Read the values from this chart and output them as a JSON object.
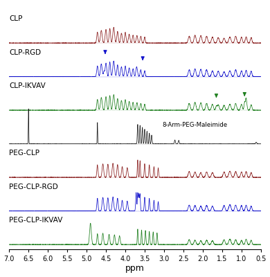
{
  "traces": [
    {
      "label": "CLP",
      "color": "#8B2020",
      "type": "clp"
    },
    {
      "label": "CLP-RGD",
      "color": "#1414CC",
      "type": "clp_rgd"
    },
    {
      "label": "CLP-IKVAV",
      "color": "#208020",
      "type": "clp_ikvav"
    },
    {
      "label": "8-Arm-PEG-Maleimide",
      "color": "#1a1a1a",
      "type": "peg"
    },
    {
      "label": "PEG-CLP",
      "color": "#8B2020",
      "type": "peg_clp"
    },
    {
      "label": "PEG-CLP-RGD",
      "color": "#1414CC",
      "type": "peg_clp_rgd"
    },
    {
      "label": "PEG-CLP-IKVAV",
      "color": "#208020",
      "type": "peg_clp_ikvav"
    }
  ],
  "xmin": 0.5,
  "xmax": 7.0,
  "xlabel": "ppm",
  "arrow_color_blue": "#1414CC",
  "arrow_color_green": "#208020",
  "background": "#ffffff",
  "figsize": [
    3.9,
    4.0
  ],
  "dpi": 100,
  "label_fontsize": 7.5,
  "tick_fontsize": 7,
  "xlabel_fontsize": 9
}
